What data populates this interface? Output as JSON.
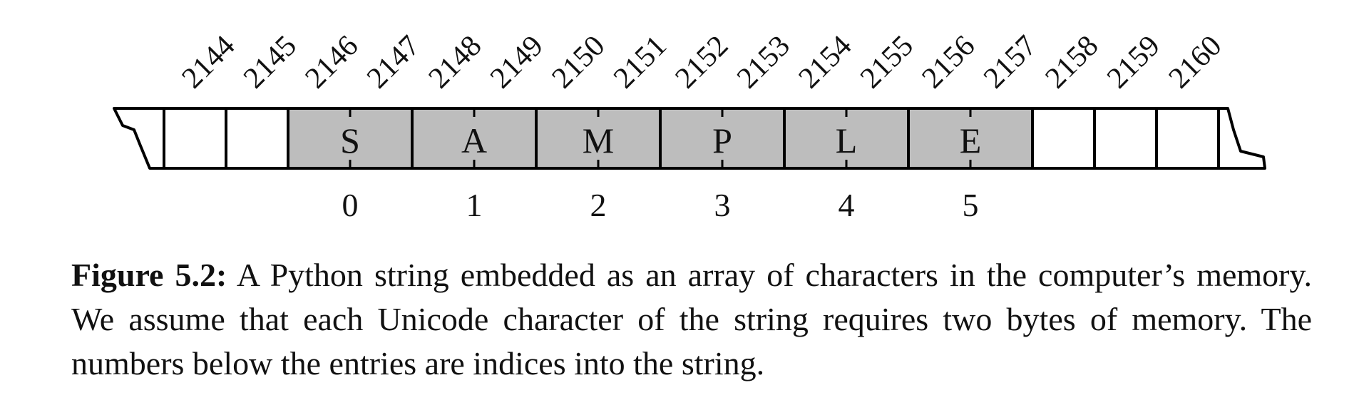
{
  "figure": {
    "addresses": [
      "2144",
      "2145",
      "2146",
      "2147",
      "2148",
      "2149",
      "2150",
      "2151",
      "2152",
      "2153",
      "2154",
      "2155",
      "2156",
      "2157",
      "2158",
      "2159",
      "2160"
    ],
    "characters": [
      "S",
      "A",
      "M",
      "P",
      "L",
      "E"
    ],
    "indices": [
      "0",
      "1",
      "2",
      "3",
      "4",
      "5"
    ],
    "colors": {
      "filled": "#bdbdbd",
      "empty": "#ffffff",
      "stroke": "#000000"
    }
  },
  "caption": {
    "label": "Figure 5.2:",
    "text": "A Python string embedded as an array of characters in the computer’s memory. We assume that each Unicode character of the string requires two bytes of memory. The numbers below the entries are indices into the string."
  }
}
